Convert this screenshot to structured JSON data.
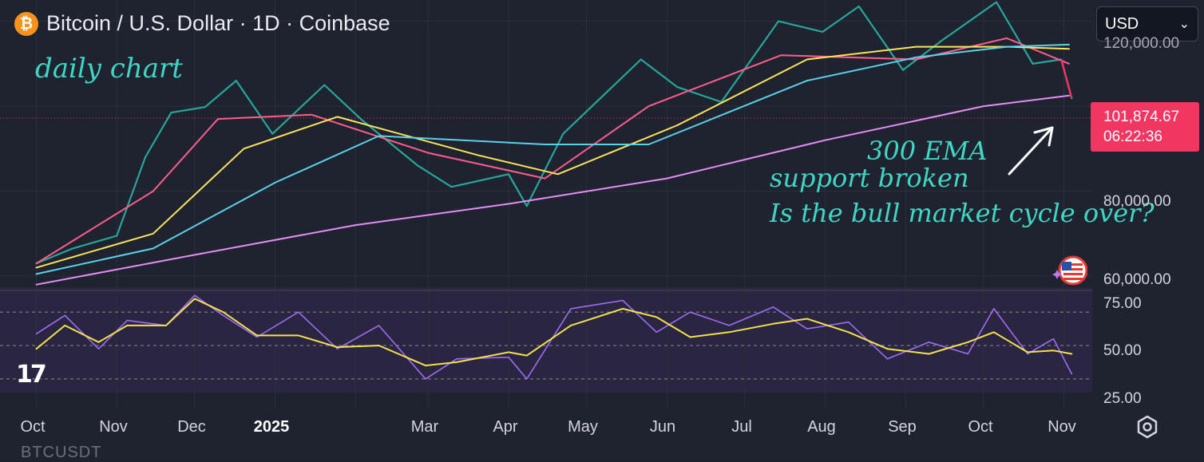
{
  "header": {
    "title": "Bitcoin / U.S. Dollar · 1D · Coinbase",
    "coin_glyph": "₿",
    "coin_color": "#f7931a"
  },
  "currency_select": {
    "value": "USD"
  },
  "price_tag": {
    "price": "101,874.67",
    "countdown": "06:22:36",
    "color": "#f23662"
  },
  "annotations": {
    "daily": "daily chart",
    "ema_line1": "300 EMA",
    "ema_line2": "support broken",
    "question": "Is the bull market  cycle over?"
  },
  "logo": {
    "text": "17"
  },
  "ghost_text": "BTCUSDT",
  "icons": {
    "settings": "gear-icon",
    "flag": "us-flag-icon",
    "arrow": "arrow-icon"
  },
  "chart_data": [
    {
      "type": "line",
      "title": "Bitcoin / U.S. Dollar · 1D · Coinbase",
      "x_tick_labels": [
        "Oct",
        "Nov",
        "Dec",
        "2025",
        "Mar",
        "Apr",
        "May",
        "Jun",
        "Jul",
        "Aug",
        "Sep",
        "Oct",
        "Nov"
      ],
      "y_tick_labels": [
        "60,000.00",
        "80,000.00",
        "120,000.00"
      ],
      "ylim": [
        57000,
        125000
      ],
      "grid": true,
      "x": [
        "2024-10-01",
        "2024-10-15",
        "2024-11-01",
        "2024-11-12",
        "2024-11-22",
        "2024-12-05",
        "2024-12-17",
        "2024-12-31",
        "2025-01-20",
        "2025-02-03",
        "2025-02-25",
        "2025-03-10",
        "2025-04-01",
        "2025-04-08",
        "2025-04-22",
        "2025-05-10",
        "2025-05-22",
        "2025-06-05",
        "2025-06-22",
        "2025-07-14",
        "2025-07-31",
        "2025-08-14",
        "2025-08-31",
        "2025-09-15",
        "2025-10-06",
        "2025-10-20",
        "2025-10-31",
        "2025-11-04"
      ],
      "series": [
        {
          "values": [
            63000,
            66500,
            69500,
            88000,
            98500,
            99800,
            106000,
            93500,
            105000,
            97000,
            86000,
            81000,
            84000,
            76500,
            93500,
            104000,
            111000,
            104500,
            101000,
            120000,
            117500,
            123500,
            108500,
            115500,
            124500,
            110000,
            111000,
            101875
          ],
          "color": "#26a69a"
        },
        {
          "x": [
            "2024-10-01",
            "2024-11-15",
            "2024-12-10",
            "2025-01-15",
            "2025-03-01",
            "2025-04-15",
            "2025-05-25",
            "2025-07-15",
            "2025-09-05",
            "2025-10-10",
            "2025-11-03"
          ],
          "values": [
            63000,
            80000,
            97000,
            98000,
            89000,
            83000,
            100000,
            112000,
            111000,
            116000,
            110000
          ],
          "color": "#ff5c8a"
        },
        {
          "x": [
            "2024-10-01",
            "2024-11-15",
            "2024-12-20",
            "2025-01-25",
            "2025-03-20",
            "2025-04-20",
            "2025-06-05",
            "2025-07-25",
            "2025-09-05",
            "2025-10-10",
            "2025-11-03"
          ],
          "values": [
            62000,
            70000,
            90000,
            97500,
            88500,
            84000,
            95500,
            111000,
            114000,
            114000,
            113500
          ],
          "color": "#fbe35a"
        },
        {
          "x": [
            "2024-10-01",
            "2024-11-15",
            "2025-01-01",
            "2025-02-10",
            "2025-04-15",
            "2025-05-25",
            "2025-07-25",
            "2025-09-05",
            "2025-10-10",
            "2025-11-03"
          ],
          "values": [
            60500,
            66500,
            82000,
            93000,
            91000,
            91000,
            106000,
            111500,
            114000,
            114500
          ],
          "color": "#5ad1e8"
        },
        {
          "x": [
            "2024-10-01",
            "2024-12-01",
            "2025-02-01",
            "2025-04-01",
            "2025-06-01",
            "2025-08-01",
            "2025-10-01",
            "2025-11-03"
          ],
          "values": [
            58000,
            65000,
            72000,
            77000,
            83000,
            92000,
            100000,
            102500
          ],
          "color": "#e68cf5"
        }
      ]
    },
    {
      "type": "line",
      "title": "",
      "y_tick_labels": [
        "75.00",
        "50.00",
        "25.00"
      ],
      "ylim": [
        18,
        82
      ],
      "reference_lines": [
        70,
        50,
        30
      ],
      "x": [
        "2024-10-01",
        "2024-10-12",
        "2024-10-25",
        "2024-11-05",
        "2024-11-20",
        "2024-12-01",
        "2024-12-12",
        "2024-12-25",
        "2025-01-10",
        "2025-01-25",
        "2025-02-10",
        "2025-02-28",
        "2025-03-12",
        "2025-04-01",
        "2025-04-08",
        "2025-04-25",
        "2025-05-15",
        "2025-05-28",
        "2025-06-10",
        "2025-06-25",
        "2025-07-12",
        "2025-07-25",
        "2025-08-10",
        "2025-08-25",
        "2025-09-10",
        "2025-09-25",
        "2025-10-05",
        "2025-10-18",
        "2025-10-28",
        "2025-11-04"
      ],
      "series": [
        {
          "values": [
            57,
            68,
            48,
            65,
            62,
            80,
            68,
            55,
            70,
            48,
            62,
            30,
            42,
            43,
            30,
            72,
            77,
            58,
            70,
            62,
            73,
            60,
            64,
            42,
            52,
            45,
            72,
            45,
            54,
            33
          ],
          "color": "#9c6df5"
        },
        {
          "values": [
            48,
            62,
            52,
            62,
            62,
            78,
            70,
            56,
            56,
            49,
            50,
            38,
            40,
            46,
            44,
            62,
            72,
            67,
            55,
            58,
            63,
            66,
            58,
            48,
            45,
            52,
            58,
            46,
            47,
            45
          ],
          "color": "#f2e14f"
        }
      ]
    }
  ]
}
